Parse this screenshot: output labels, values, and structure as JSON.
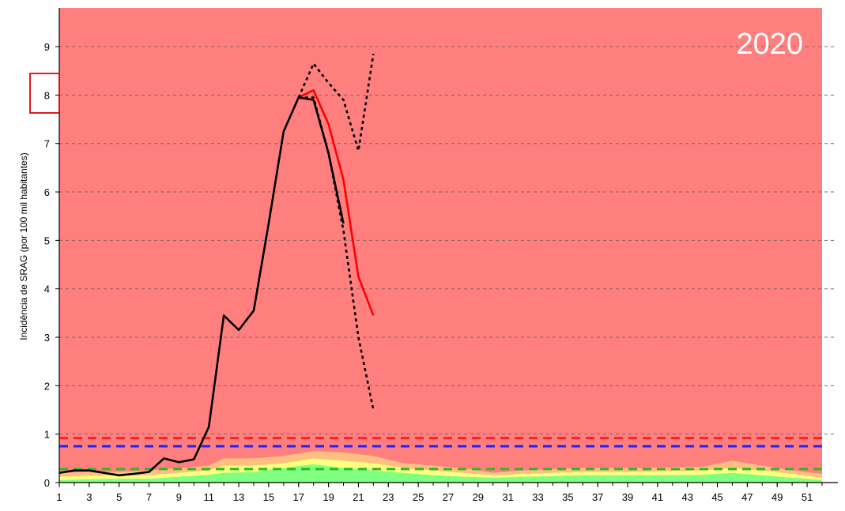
{
  "chart_data": {
    "type": "line",
    "title": "",
    "year_label": "2020",
    "xlabel": "",
    "ylabel": "Incidência de SRAG (por 100 mil habitantes)",
    "xlim": [
      1,
      52
    ],
    "ylim": [
      0,
      9.8
    ],
    "x_ticks": [
      1,
      3,
      5,
      7,
      9,
      11,
      13,
      15,
      17,
      19,
      21,
      23,
      25,
      27,
      29,
      31,
      33,
      35,
      37,
      39,
      41,
      43,
      45,
      47,
      49,
      51
    ],
    "y_ticks": [
      0,
      1,
      2,
      3,
      4,
      5,
      6,
      7,
      8,
      9
    ],
    "grid": "horizontal-dashed",
    "colors": {
      "background": "#ff7f7f",
      "grid": "#8c6060",
      "observed": "#000000",
      "estimated": "#ff0000",
      "threshold_red": "#ff2020",
      "threshold_blue": "#2020ff",
      "threshold_green": "#20c020",
      "band_orange": "#ffbf80",
      "band_yellow": "#ffff80",
      "band_green": "#80ff80"
    },
    "series": [
      {
        "style": "solid-black",
        "x": [
          1,
          2,
          3,
          4,
          5,
          6,
          7,
          8,
          9,
          10,
          11,
          12,
          13,
          14,
          15,
          16,
          17,
          18,
          19,
          20
        ],
        "y": [
          0.2,
          0.25,
          0.25,
          0.2,
          0.15,
          0.18,
          0.22,
          0.5,
          0.42,
          0.48,
          1.15,
          3.45,
          3.15,
          3.55,
          5.35,
          7.25,
          7.95,
          7.9,
          6.8,
          5.35
        ]
      },
      {
        "style": "solid-red",
        "x": [
          17,
          18,
          19,
          20,
          21,
          22
        ],
        "y": [
          7.95,
          8.1,
          7.4,
          6.25,
          4.25,
          3.45
        ]
      },
      {
        "style": "dotted-black-upper",
        "x": [
          17,
          18,
          19,
          20,
          21,
          22
        ],
        "y": [
          7.95,
          8.65,
          8.25,
          7.9,
          6.85,
          8.85
        ]
      },
      {
        "style": "dotted-black-lower",
        "x": [
          17,
          18,
          19,
          20,
          21,
          22
        ],
        "y": [
          7.95,
          7.95,
          6.8,
          5.2,
          3.0,
          1.5
        ]
      }
    ],
    "thresholds": [
      {
        "style": "dashed-red",
        "y": 0.92
      },
      {
        "style": "dashed-blue",
        "y": 0.75
      },
      {
        "style": "dashed-green",
        "y": 0.28
      }
    ],
    "bands": {
      "x": [
        1,
        3,
        5,
        7,
        9,
        11,
        12,
        14,
        16,
        18,
        20,
        22,
        24,
        26,
        28,
        30,
        32,
        34,
        36,
        38,
        40,
        42,
        44,
        46,
        48,
        50,
        52
      ],
      "orange": [
        0.2,
        0.22,
        0.22,
        0.25,
        0.3,
        0.35,
        0.5,
        0.5,
        0.55,
        0.65,
        0.62,
        0.55,
        0.4,
        0.35,
        0.3,
        0.2,
        0.25,
        0.28,
        0.3,
        0.3,
        0.3,
        0.32,
        0.33,
        0.45,
        0.35,
        0.25,
        0.18
      ],
      "yellow": [
        0.12,
        0.14,
        0.15,
        0.15,
        0.2,
        0.25,
        0.35,
        0.35,
        0.4,
        0.5,
        0.45,
        0.4,
        0.3,
        0.25,
        0.2,
        0.15,
        0.18,
        0.2,
        0.22,
        0.22,
        0.22,
        0.24,
        0.25,
        0.3,
        0.25,
        0.18,
        0.1
      ],
      "green": [
        0.05,
        0.07,
        0.08,
        0.08,
        0.12,
        0.16,
        0.2,
        0.22,
        0.3,
        0.38,
        0.3,
        0.25,
        0.2,
        0.15,
        0.12,
        0.1,
        0.12,
        0.13,
        0.15,
        0.15,
        0.15,
        0.15,
        0.16,
        0.2,
        0.15,
        0.1,
        0.05
      ]
    },
    "highlight": {
      "style": "red-outline-box",
      "y_tick": 8
    }
  }
}
